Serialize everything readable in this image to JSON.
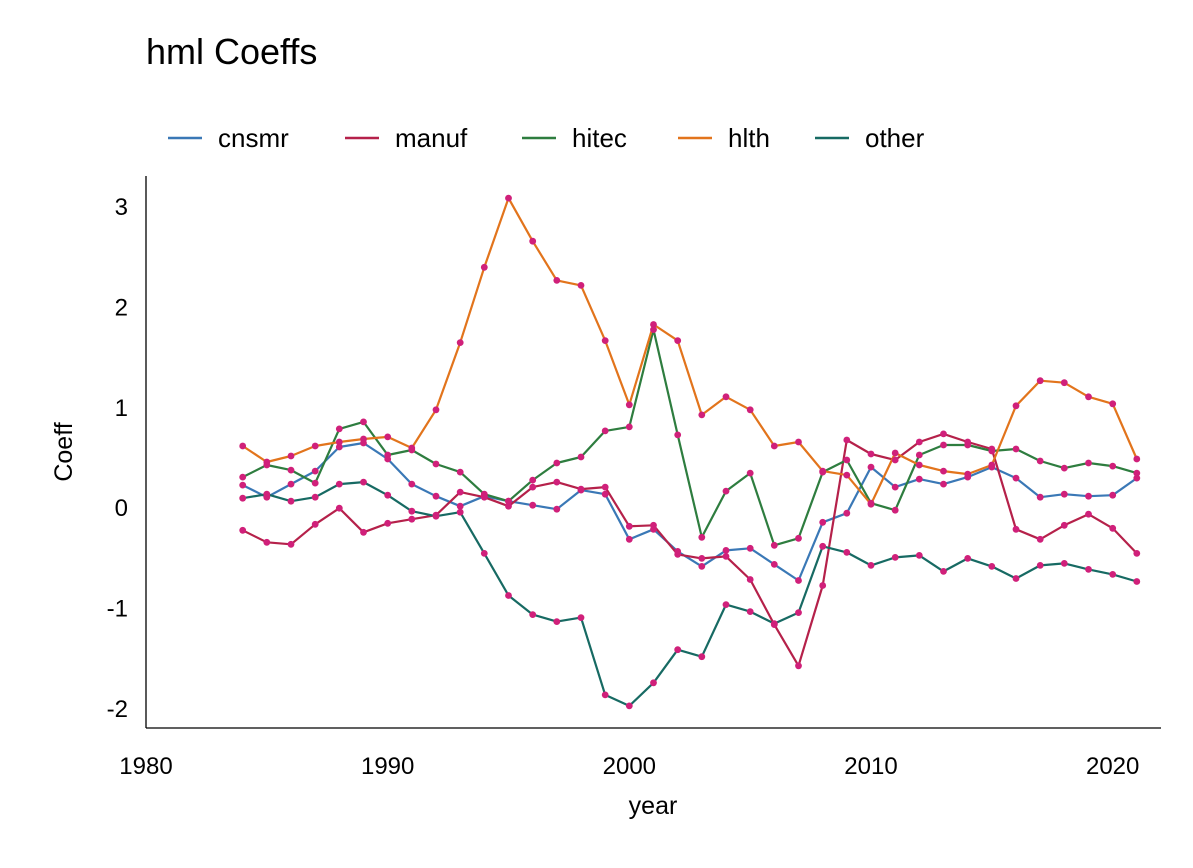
{
  "chart_data": {
    "type": "line",
    "title": "hml Coeffs",
    "xlabel": "year",
    "ylabel": "Coeff",
    "xlim": [
      1980,
      2022
    ],
    "ylim": [
      -2.2,
      3.3
    ],
    "xticks": [
      1980,
      1990,
      2000,
      2010,
      2020
    ],
    "yticks": [
      3,
      2,
      1,
      0,
      -1,
      -2
    ],
    "xtick_labels": [
      "1980",
      "1990",
      "2000",
      "2010",
      "2020"
    ],
    "ytick_labels": [
      "3",
      "2",
      "1",
      "0",
      "-1",
      "-2"
    ],
    "legend_position": "top-left",
    "marker_color": "#d0207a",
    "x": [
      1984,
      1985,
      1986,
      1987,
      1988,
      1989,
      1990,
      1991,
      1992,
      1993,
      1994,
      1995,
      1996,
      1997,
      1998,
      1999,
      2000,
      2001,
      2002,
      2003,
      2004,
      2005,
      2006,
      2007,
      2008,
      2009,
      2010,
      2011,
      2012,
      2013,
      2014,
      2015,
      2016,
      2017,
      2018,
      2019,
      2020,
      2021
    ],
    "series": [
      {
        "name": "cnsmr",
        "color": "#3a78b6",
        "values": [
          0.22,
          0.1,
          0.23,
          0.36,
          0.6,
          0.64,
          0.48,
          0.23,
          0.11,
          0.01,
          0.11,
          0.06,
          0.02,
          -0.02,
          0.17,
          0.13,
          -0.32,
          -0.22,
          -0.44,
          -0.59,
          -0.43,
          -0.41,
          -0.57,
          -0.73,
          -0.15,
          -0.06,
          0.4,
          0.2,
          0.28,
          0.23,
          0.3,
          0.4,
          0.29,
          0.1,
          0.13,
          0.11,
          0.12,
          0.29
        ]
      },
      {
        "name": "manuf",
        "color": "#b5214a",
        "values": [
          -0.23,
          -0.35,
          -0.37,
          -0.17,
          -0.01,
          -0.25,
          -0.16,
          -0.12,
          -0.08,
          0.15,
          0.1,
          0.01,
          0.2,
          0.25,
          0.18,
          0.2,
          -0.19,
          -0.18,
          -0.47,
          -0.51,
          -0.49,
          -0.72,
          -1.17,
          -1.58,
          -0.78,
          0.67,
          0.53,
          0.47,
          0.65,
          0.73,
          0.65,
          0.58,
          -0.22,
          -0.32,
          -0.18,
          -0.07,
          -0.21,
          -0.46
        ]
      },
      {
        "name": "hitec",
        "color": "#2e7d3f",
        "values": [
          0.3,
          0.42,
          0.37,
          0.24,
          0.78,
          0.85,
          0.52,
          0.57,
          0.43,
          0.35,
          0.13,
          0.06,
          0.27,
          0.44,
          0.5,
          0.76,
          0.8,
          1.77,
          0.72,
          -0.3,
          0.16,
          0.34,
          -0.38,
          -0.31,
          0.35,
          0.47,
          0.04,
          -0.03,
          0.52,
          0.62,
          0.62,
          0.56,
          0.58,
          0.46,
          0.39,
          0.44,
          0.41,
          0.34
        ]
      },
      {
        "name": "hlth",
        "color": "#e2741c",
        "values": [
          0.61,
          0.45,
          0.51,
          0.61,
          0.65,
          0.68,
          0.7,
          0.59,
          0.97,
          1.64,
          2.39,
          3.08,
          2.65,
          2.26,
          2.21,
          1.66,
          1.02,
          1.82,
          1.66,
          0.92,
          1.1,
          0.97,
          0.61,
          0.65,
          0.36,
          0.32,
          0.03,
          0.54,
          0.42,
          0.36,
          0.33,
          0.42,
          1.01,
          1.26,
          1.24,
          1.1,
          1.03,
          0.48
        ]
      },
      {
        "name": "other",
        "color": "#176a63",
        "values": [
          0.09,
          0.13,
          0.06,
          0.1,
          0.23,
          0.25,
          0.12,
          -0.04,
          -0.09,
          -0.05,
          -0.46,
          -0.88,
          -1.07,
          -1.14,
          -1.1,
          -1.87,
          -1.98,
          -1.75,
          -1.42,
          -1.49,
          -0.97,
          -1.04,
          -1.16,
          -1.05,
          -0.39,
          -0.45,
          -0.58,
          -0.5,
          -0.48,
          -0.64,
          -0.51,
          -0.59,
          -0.71,
          -0.58,
          -0.56,
          -0.62,
          -0.67,
          -0.74
        ]
      }
    ]
  }
}
